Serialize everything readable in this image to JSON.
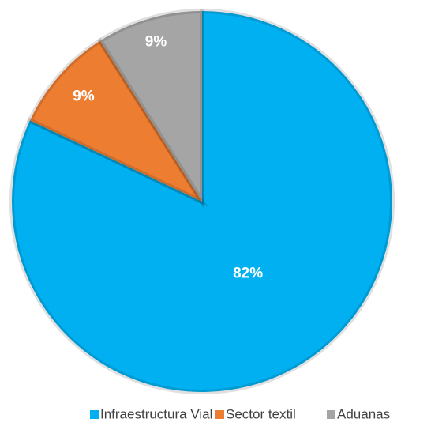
{
  "chart_data": {
    "type": "pie",
    "categories": [
      "Infraestructura Vial",
      "Sector textil",
      "Aduanas"
    ],
    "values": [
      82,
      9,
      9
    ],
    "value_labels": [
      "82%",
      "9%",
      "9%"
    ],
    "colors": [
      "#00b0f0",
      "#ed7d31",
      "#a5a5a5"
    ],
    "legend": "bottom"
  }
}
